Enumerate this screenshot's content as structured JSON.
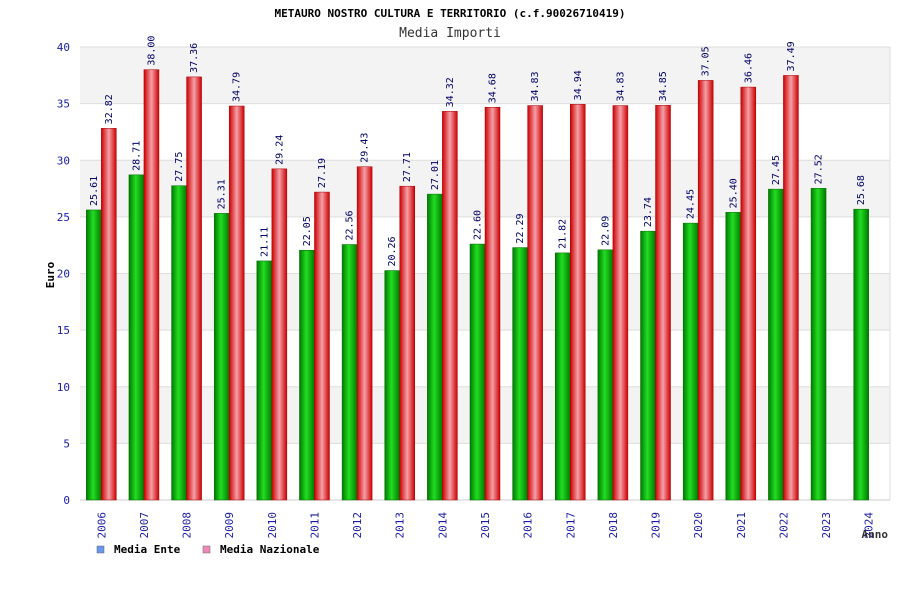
{
  "chart_data": {
    "type": "bar",
    "title": "METAURO NOSTRO CULTURA E TERRITORIO (c.f.90026710419)",
    "subtitle": "Media Importi",
    "ylabel": "Euro",
    "xlabel": "Anno",
    "ylim": [
      0,
      40
    ],
    "yticks": [
      0,
      5,
      10,
      15,
      20,
      25,
      30,
      35,
      40
    ],
    "grid": true,
    "legend_position": "bottom-left",
    "categories": [
      "2006",
      "2007",
      "2008",
      "2009",
      "2010",
      "2011",
      "2012",
      "2013",
      "2014",
      "2015",
      "2016",
      "2017",
      "2018",
      "2019",
      "2020",
      "2021",
      "2022",
      "2023",
      "2024"
    ],
    "series": [
      {
        "name": "Media Ente",
        "color": "#00aa00",
        "legend_color": "#6699ee",
        "values": [
          25.61,
          28.71,
          27.75,
          25.31,
          21.11,
          22.05,
          22.56,
          20.26,
          27.01,
          22.6,
          22.29,
          21.82,
          22.09,
          23.74,
          24.45,
          25.4,
          27.45,
          27.52,
          25.68
        ],
        "labels": [
          "25.61",
          "28.71",
          "27.75",
          "25.31",
          "21.11",
          "22.05",
          "22.56",
          "20.26",
          "27.01",
          "22.60",
          "22.29",
          "21.82",
          "22.09",
          "23.74",
          "24.45",
          "25.40",
          "27.45",
          "27.52",
          "25.68"
        ]
      },
      {
        "name": "Media Nazionale",
        "color": "#ee2222",
        "legend_color": "#ee88bb",
        "values": [
          32.82,
          38.0,
          37.36,
          34.79,
          29.24,
          27.19,
          29.43,
          27.71,
          34.32,
          34.68,
          34.83,
          34.94,
          34.83,
          34.85,
          37.05,
          36.46,
          37.49,
          null,
          null
        ],
        "labels": [
          "32.82",
          "38.00",
          "37.36",
          "34.79",
          "29.24",
          "27.19",
          "29.43",
          "27.71",
          "34.32",
          "34.68",
          "34.83",
          "34.94",
          "34.83",
          "34.85",
          "37.05",
          "36.46",
          "37.49",
          "",
          ""
        ]
      }
    ]
  }
}
